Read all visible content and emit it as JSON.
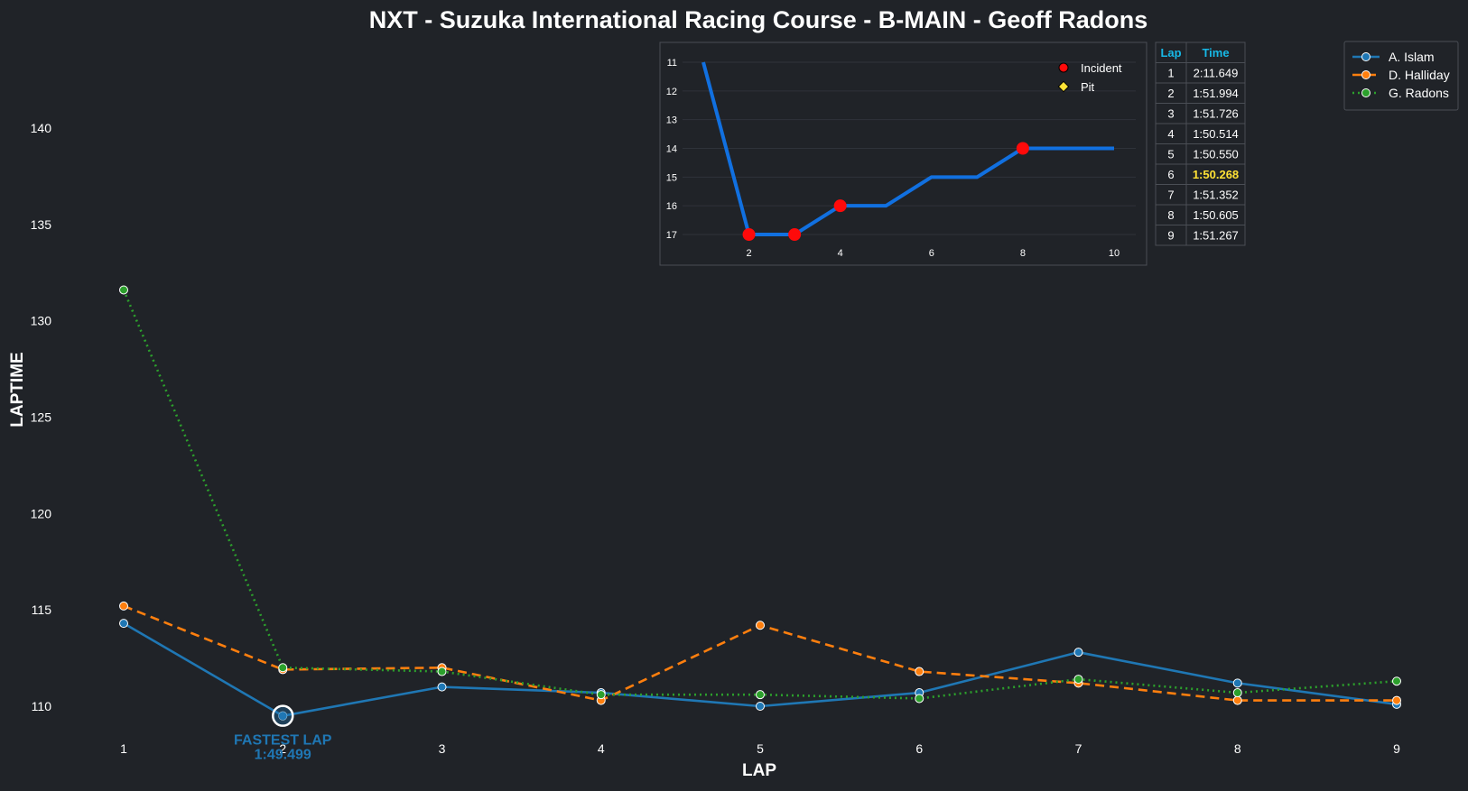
{
  "colors": {
    "background": "#202328",
    "text": "#ffffff",
    "axis_label": "#ffffff",
    "table_header": "#17b8e6",
    "highlight": "#ffe135",
    "position_line": "#1170e0",
    "incident": "#ff0a0a",
    "pit": "#ffe135",
    "fastest": "#1f77b4"
  },
  "chart_data": [
    {
      "type": "line",
      "title": "NXT - Suzuka International Racing Course - B-MAIN - Geoff Radons",
      "xlabel": "LAP",
      "ylabel": "LAPTIME",
      "x": [
        1,
        2,
        3,
        4,
        5,
        6,
        7,
        8,
        9
      ],
      "xlim": [
        1,
        9
      ],
      "ylim": [
        108.8,
        144.2
      ],
      "yticks": [
        110,
        115,
        120,
        125,
        130,
        135,
        140
      ],
      "grid": false,
      "legend_position": "top-right",
      "series": [
        {
          "name": "A. Islam",
          "color": "#1f77b4",
          "style": "solid",
          "values": [
            114.3,
            109.5,
            111.0,
            110.7,
            110.0,
            110.7,
            112.8,
            111.2,
            110.1
          ]
        },
        {
          "name": "D. Halliday",
          "color": "#ff7f0e",
          "style": "dashed",
          "values": [
            115.2,
            111.9,
            112.0,
            110.3,
            114.2,
            111.8,
            111.2,
            110.3,
            110.3
          ]
        },
        {
          "name": "G. Radons",
          "color": "#2ca02c",
          "style": "dotted",
          "values": [
            131.6,
            112.0,
            111.8,
            110.6,
            110.6,
            110.4,
            111.4,
            110.7,
            111.3
          ]
        }
      ],
      "annotation": {
        "label": "FASTEST LAP",
        "value": "1:49.499",
        "x": 2,
        "y": 109.5
      }
    },
    {
      "type": "line",
      "title": "",
      "x": [
        1,
        2,
        3,
        4,
        5,
        6,
        7,
        8,
        9,
        10
      ],
      "values": [
        11,
        17,
        17,
        16,
        16,
        15,
        15,
        14,
        14,
        14
      ],
      "xticks": [
        2,
        4,
        6,
        8,
        10
      ],
      "yticks": [
        11,
        12,
        13,
        14,
        15,
        16,
        17
      ],
      "y_inverted": true,
      "incident_laps": [
        2,
        3,
        4,
        8
      ],
      "pit_laps": [],
      "legend": [
        "Incident",
        "Pit"
      ]
    },
    {
      "type": "table",
      "headers": [
        "Lap",
        "Time"
      ],
      "rows": [
        [
          "1",
          "2:11.649"
        ],
        [
          "2",
          "1:51.994"
        ],
        [
          "3",
          "1:51.726"
        ],
        [
          "4",
          "1:50.514"
        ],
        [
          "5",
          "1:50.550"
        ],
        [
          "6",
          "1:50.268"
        ],
        [
          "7",
          "1:51.352"
        ],
        [
          "8",
          "1:50.605"
        ],
        [
          "9",
          "1:51.267"
        ]
      ],
      "best_row": 5
    }
  ]
}
